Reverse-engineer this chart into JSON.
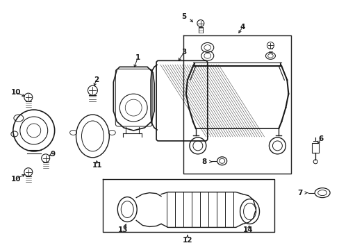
{
  "bg_color": "#ffffff",
  "line_color": "#1a1a1a",
  "label_font_size": 7.5,
  "figsize": [
    4.89,
    3.6
  ],
  "dpi": 100
}
